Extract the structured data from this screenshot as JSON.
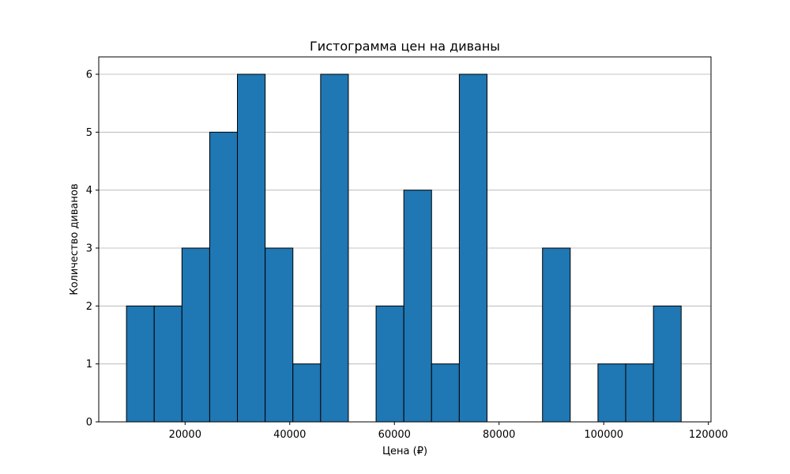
{
  "chart_data": {
    "type": "bar",
    "title": "Гистограмма цен на диваны",
    "xlabel": "Цена (₽)",
    "ylabel": "Количество диванов",
    "xlim": [
      3500,
      120500
    ],
    "ylim": [
      0,
      6.3
    ],
    "xticks": [
      20000,
      40000,
      60000,
      80000,
      100000,
      120000
    ],
    "yticks": [
      0,
      1,
      2,
      3,
      4,
      5,
      6
    ],
    "grid": "y",
    "bar_color": "#1f77b4",
    "edge_color": "#000000",
    "grid_color": "#b0b0b0",
    "bins": [
      {
        "start": 8800,
        "end": 14100,
        "count": 2
      },
      {
        "start": 14100,
        "end": 19400,
        "count": 2
      },
      {
        "start": 19400,
        "end": 24700,
        "count": 3
      },
      {
        "start": 24700,
        "end": 30000,
        "count": 5
      },
      {
        "start": 30000,
        "end": 35300,
        "count": 6
      },
      {
        "start": 35300,
        "end": 40600,
        "count": 3
      },
      {
        "start": 40600,
        "end": 45900,
        "count": 1
      },
      {
        "start": 45900,
        "end": 51200,
        "count": 6
      },
      {
        "start": 51200,
        "end": 56500,
        "count": 0
      },
      {
        "start": 56500,
        "end": 61800,
        "count": 2
      },
      {
        "start": 61800,
        "end": 67100,
        "count": 4
      },
      {
        "start": 67100,
        "end": 72400,
        "count": 1
      },
      {
        "start": 72400,
        "end": 77700,
        "count": 6
      },
      {
        "start": 77700,
        "end": 83000,
        "count": 0
      },
      {
        "start": 83000,
        "end": 88300,
        "count": 0
      },
      {
        "start": 88300,
        "end": 93600,
        "count": 3
      },
      {
        "start": 93600,
        "end": 98900,
        "count": 0
      },
      {
        "start": 98900,
        "end": 104200,
        "count": 1
      },
      {
        "start": 104200,
        "end": 109500,
        "count": 1
      },
      {
        "start": 109500,
        "end": 114800,
        "count": 2
      }
    ]
  }
}
